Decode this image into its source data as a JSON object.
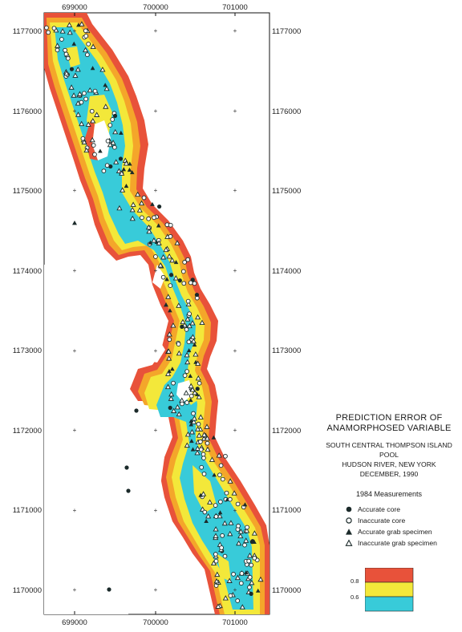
{
  "map": {
    "x_ticks": [
      "699000",
      "700000",
      "701000"
    ],
    "y_ticks": [
      "1177000",
      "1176000",
      "1175000",
      "1174000",
      "1173000",
      "1172000",
      "1171000",
      "1170000"
    ]
  },
  "title": {
    "line1": "PREDICTION ERROR OF",
    "line2": "ANAMORPHOSED VARIABLE"
  },
  "subtitle": {
    "line1": "SOUTH CENTRAL THOMPSON ISLAND POOL",
    "line2": "HUDSON RIVER, NEW YORK",
    "line3": "DECEMBER, 1990"
  },
  "legend": {
    "heading": "1984 Measurements",
    "items": [
      {
        "label": "Accurate core",
        "symbol": "filled-circle-icon"
      },
      {
        "label": "Inaccurate core",
        "symbol": "open-circle-icon"
      },
      {
        "label": "Accurate grab specimen",
        "symbol": "filled-triangle-icon"
      },
      {
        "label": "Inaccurate grab specimen",
        "symbol": "open-triangle-icon"
      }
    ]
  },
  "color_scale": {
    "bands": [
      {
        "range": "> 0.8",
        "color": "#e8523a"
      },
      {
        "range": "0.6 - 0.8",
        "color": "#f3e83a"
      },
      {
        "range": "< 0.6",
        "color": "#38cbd9"
      }
    ],
    "tick_labels": [
      "0.8",
      "0.6"
    ],
    "highlight_colors": {
      "orange": "#f4a62a",
      "dark_red": "#d8321f"
    }
  }
}
